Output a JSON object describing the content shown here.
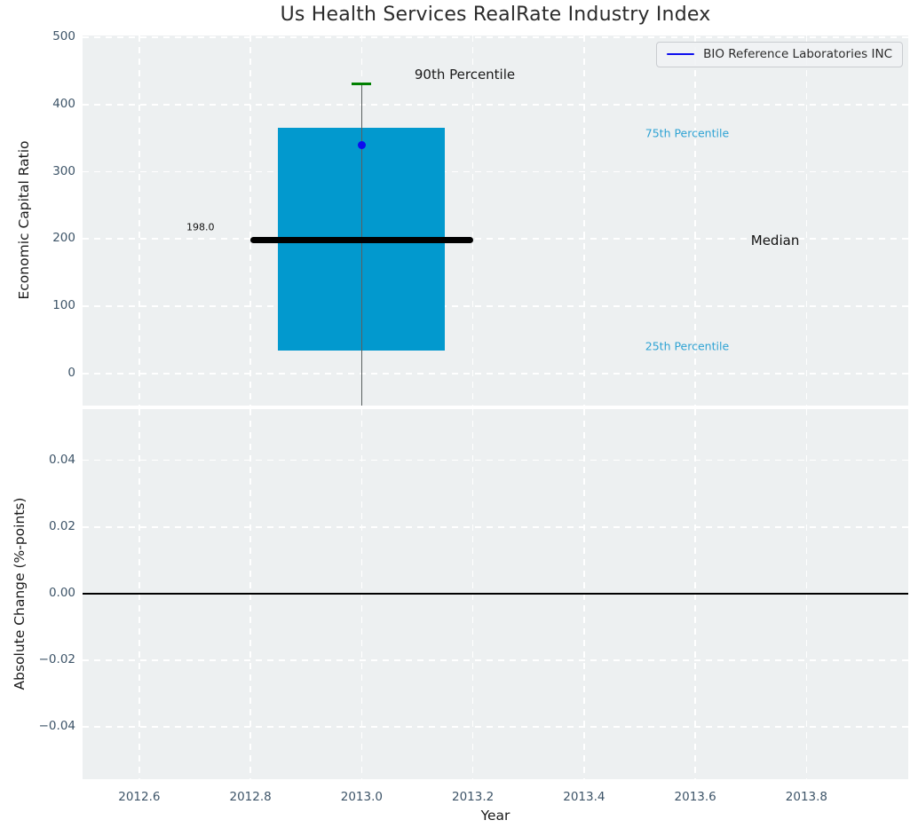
{
  "title": "Us Health Services RealRate Industry Index",
  "axes": {
    "x_label": "Year",
    "top_y_label": "Economic Capital Ratio",
    "bottom_y_label": "Absolute Change (%-points)"
  },
  "legend": {
    "label": "BIO Reference Laboratories INC"
  },
  "colors": {
    "figure_bg": "#ffffff",
    "plot_bg": "#edf0f1",
    "grid": "#ffffff",
    "box_fill": "#0299ce",
    "whisker": "#5a5f5f",
    "cap_90th": "#008000",
    "median_line": "#000000",
    "marker": "#0d0dee",
    "legend_line": "#0d0dee",
    "tick_label": "#3d5468",
    "percentile_text": "#2fa3d4",
    "text_dark": "#1a1a1a",
    "zero_line": "#000000"
  },
  "chart_data": [
    {
      "type": "boxplot+scatter",
      "title": "Us Health Services RealRate Industry Index",
      "ylabel": "Economic Capital Ratio",
      "xlabel": "",
      "grid": "white-dashed",
      "legend_position": "upper-right",
      "xlim": [
        2012.498,
        2013.983
      ],
      "ylim": [
        -48,
        503
      ],
      "yticks": [
        {
          "value": 0,
          "label": "0"
        },
        {
          "value": 100,
          "label": "100"
        },
        {
          "value": 200,
          "label": "200"
        },
        {
          "value": 300,
          "label": "300"
        },
        {
          "value": 400,
          "label": "400"
        },
        {
          "value": 500,
          "label": "500"
        }
      ],
      "xticks": [
        {
          "value": 2012.6,
          "label": "2012.6"
        },
        {
          "value": 2012.8,
          "label": "2012.8"
        },
        {
          "value": 2013.0,
          "label": "2013.0"
        },
        {
          "value": 2013.2,
          "label": "2013.2"
        },
        {
          "value": 2013.4,
          "label": "2013.4"
        },
        {
          "value": 2013.6,
          "label": "2013.6"
        },
        {
          "value": 2013.8,
          "label": "2013.8"
        }
      ],
      "box": {
        "x_center": 2013.0,
        "box_left": 2012.85,
        "box_right": 2013.15,
        "q25": 34,
        "median": 198.0,
        "q75": 365,
        "p90": 431,
        "whisker_low_clipped_at_axis_bottom": true,
        "median_line_left": 2012.8,
        "median_line_right": 2013.2,
        "median_label": "198.0"
      },
      "series": [
        {
          "name": "BIO Reference Laboratories INC",
          "type": "scatter",
          "x": [
            2013.0
          ],
          "y": [
            340
          ],
          "color": "#0d0dee"
        }
      ],
      "annotations": [
        {
          "id": "p90-label",
          "text": "90th Percentile",
          "x": 2013.095,
          "y": 445,
          "size": 15,
          "color": "#1a1a1a",
          "align": "left"
        },
        {
          "id": "p75-label",
          "text": "75th Percentile",
          "x": 2013.51,
          "y": 357,
          "size": 12.5,
          "color": "#2fa3d4",
          "align": "left"
        },
        {
          "id": "median-label",
          "text": "Median",
          "x": 2013.7,
          "y": 198,
          "size": 15,
          "color": "#111111",
          "align": "left"
        },
        {
          "id": "p25-label",
          "text": "25th Percentile",
          "x": 2013.51,
          "y": 41,
          "size": 12.5,
          "color": "#2fa3d4",
          "align": "left"
        },
        {
          "id": "median-value",
          "text": "198.0",
          "x": 2012.71,
          "y": 218,
          "size": 11,
          "color": "#111111",
          "align": "center"
        }
      ]
    },
    {
      "type": "line",
      "ylabel": "Absolute Change (%-points)",
      "xlabel": "Year",
      "grid": "white-dashed",
      "xlim": [
        2012.498,
        2013.983
      ],
      "ylim": [
        -0.0556,
        0.0553
      ],
      "yticks": [
        {
          "value": 0.04,
          "label": "0.04"
        },
        {
          "value": 0.02,
          "label": "0.02"
        },
        {
          "value": 0.0,
          "label": "0.00"
        },
        {
          "value": -0.02,
          "label": "−0.02"
        },
        {
          "value": -0.04,
          "label": "−0.04"
        }
      ],
      "xticks": [
        {
          "value": 2012.6,
          "label": "2012.6"
        },
        {
          "value": 2012.8,
          "label": "2012.8"
        },
        {
          "value": 2013.0,
          "label": "2013.0"
        },
        {
          "value": 2013.2,
          "label": "2013.2"
        },
        {
          "value": 2013.4,
          "label": "2013.4"
        },
        {
          "value": 2013.6,
          "label": "2013.6"
        },
        {
          "value": 2013.8,
          "label": "2013.8"
        }
      ],
      "zero_line": 0.0,
      "series": []
    }
  ]
}
